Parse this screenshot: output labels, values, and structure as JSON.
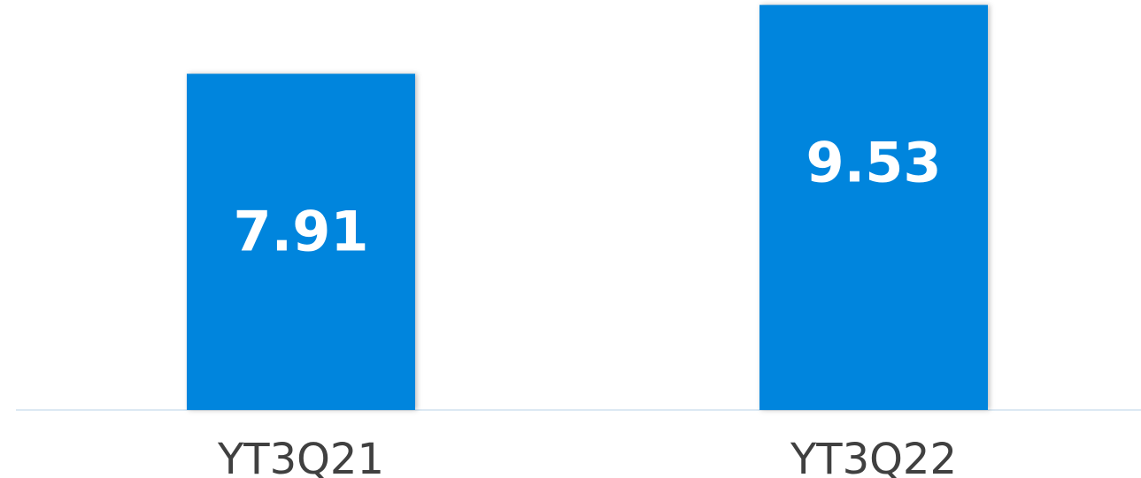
{
  "chart_data": {
    "type": "bar",
    "categories": [
      "YT3Q21",
      "YT3Q22"
    ],
    "values": [
      7.91,
      9.53
    ],
    "data_labels": [
      "7.91",
      "9.53"
    ],
    "title": "",
    "xlabel": "",
    "ylabel": "",
    "grid": false,
    "legend": "none",
    "colors": {
      "bar": "#0085dd",
      "value_label": "#ffffff",
      "category_label": "#404040"
    }
  }
}
